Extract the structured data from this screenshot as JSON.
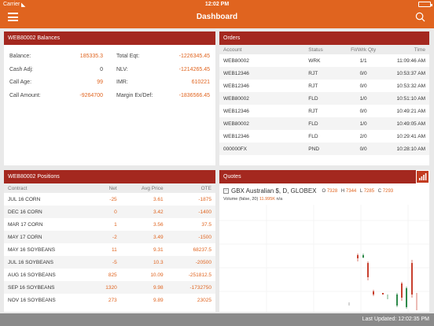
{
  "status_bar": {
    "carrier": "Carrier",
    "time": "12:02 PM"
  },
  "header": {
    "title": "Dashboard"
  },
  "balances": {
    "title": "WEB80002 Balances",
    "left": [
      {
        "label": "Balance:",
        "value": "185335.3"
      },
      {
        "label": "Cash Adj:",
        "value": "0"
      },
      {
        "label": "Call Age:",
        "value": "99"
      },
      {
        "label": "Call Amount:",
        "value": "-9264700"
      }
    ],
    "right": [
      {
        "label": "Total Eqt:",
        "value": "-1226345.45"
      },
      {
        "label": "NLV:",
        "value": "-1214265.45"
      },
      {
        "label": "IMR:",
        "value": "610221"
      },
      {
        "label": "Margin Ex/Def:",
        "value": "-1836566.45"
      }
    ]
  },
  "orders": {
    "title": "Orders",
    "columns": [
      "Account",
      "Status",
      "Fil/Wrk Qty",
      "Time"
    ],
    "rows": [
      [
        "WEB80002",
        "WRK",
        "1/1",
        "11:09:46 AM"
      ],
      [
        "WEB12346",
        "RJT",
        "0/0",
        "10:53:37 AM"
      ],
      [
        "WEB12346",
        "RJT",
        "0/0",
        "10:53:32 AM"
      ],
      [
        "WEB80002",
        "FLD",
        "1/0",
        "10:51:10 AM"
      ],
      [
        "WEB12346",
        "RJT",
        "0/0",
        "10:49:21 AM"
      ],
      [
        "WEB80002",
        "FLD",
        "1/0",
        "10:49:05 AM"
      ],
      [
        "WEB12346",
        "FLD",
        "2/0",
        "10:29:41 AM"
      ],
      [
        "000000FX",
        "PND",
        "0/0",
        "10:28:10 AM"
      ]
    ]
  },
  "positions": {
    "title": "WEB80002 Positions",
    "columns": [
      "Contract",
      "Net",
      "Avg Price",
      "OTE"
    ],
    "rows": [
      [
        "JUL 16 CORN",
        "-25",
        "3.61",
        "-1875"
      ],
      [
        "DEC 16 CORN",
        "0",
        "3.42",
        "-1400"
      ],
      [
        "MAR 17 CORN",
        "1",
        "3.56",
        "37.5"
      ],
      [
        "MAY 17 CORN",
        "-2",
        "3.49",
        "-1500"
      ],
      [
        "MAY 16 SOYBEANS",
        "11",
        "9.31",
        "68237.5"
      ],
      [
        "JUL 16 SOYBEANS",
        "-5",
        "10.3",
        "-20500"
      ],
      [
        "AUG 16 SOYBEANS",
        "825",
        "10.09",
        "-251812.5"
      ],
      [
        "SEP 16 SOYBEANS",
        "1320",
        "9.98",
        "-1732750"
      ],
      [
        "NOV 16 SOYBEANS",
        "273",
        "9.89",
        "23025"
      ]
    ]
  },
  "quotes": {
    "title": "Quotes",
    "symbol": "GBX Australian $, D, GLOBEX",
    "ohlc": [
      {
        "k": "O",
        "v": "7328"
      },
      {
        "k": "H",
        "v": "7344"
      },
      {
        "k": "L",
        "v": "7285"
      },
      {
        "k": "C",
        "v": "7293"
      }
    ],
    "volume_label": "Volume (false, 20)",
    "volume_value": "11.995K",
    "volume_na": "n/a"
  },
  "footer": {
    "text": "Last Updated: 12:02:35 PM"
  },
  "icons": {
    "menu": "menu-icon",
    "search": "search-icon",
    "chart": "chart-icon"
  },
  "colors": {
    "header": "#e0641f",
    "panel_header": "#a4281f",
    "value": "#e0641f",
    "footer": "#8a8a8a",
    "candle_red": "#c8402e",
    "candle_green": "#2e8a4a"
  }
}
